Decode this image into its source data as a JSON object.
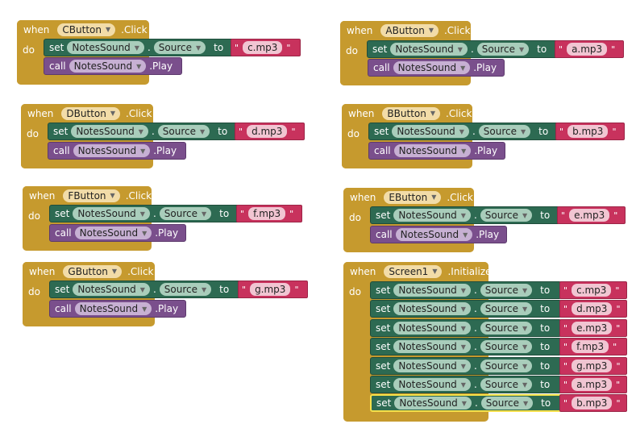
{
  "labels": {
    "when": "when",
    "do": "do",
    "set": "set",
    "call": "call",
    "to": "to",
    "dot": ".",
    "play": ".Play",
    "quote_open": "\"",
    "quote_close": "\"",
    "component": "NotesSound",
    "property": "Source"
  },
  "blocks": [
    {
      "button": "CButton",
      "event": ".Click",
      "file": "c.mp3"
    },
    {
      "button": "DButton",
      "event": ".Click",
      "file": "d.mp3"
    },
    {
      "button": "FButton",
      "event": ".Click",
      "file": "f.mp3"
    },
    {
      "button": "GButton",
      "event": ".Click",
      "file": "g.mp3"
    },
    {
      "button": "AButton",
      "event": ".Click",
      "file": "a.mp3"
    },
    {
      "button": "BButton",
      "event": ".Click",
      "file": "b.mp3"
    },
    {
      "button": "EButton",
      "event": ".Click",
      "file": "e.mp3"
    }
  ],
  "init_block": {
    "component": "Screen1",
    "event": ".Initialize",
    "files": [
      "c.mp3",
      "d.mp3",
      "e.mp3",
      "f.mp3",
      "g.mp3",
      "a.mp3",
      "b.mp3"
    ]
  },
  "colors": {
    "event_block": "#c69a2e",
    "set_block": "#2d6a52",
    "call_block": "#7a4f8c",
    "text_block": "#c8325d",
    "selection": "#f5e04a"
  }
}
